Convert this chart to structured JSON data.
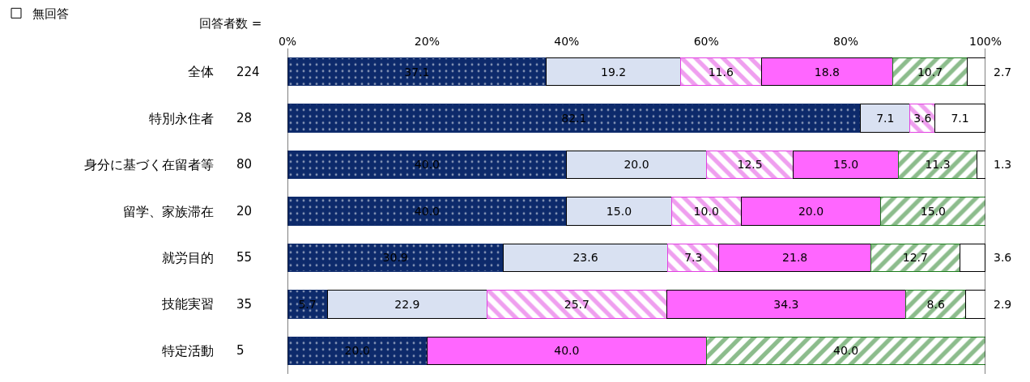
{
  "chart_data": {
    "type": "bar",
    "orientation": "horizontal",
    "stacked": true,
    "categories": [
      "全体",
      "特別永住者",
      "身分に基づく在留者等",
      "留学、家族滞在",
      "就労目的",
      "技能実習",
      "特定活動"
    ],
    "series": [
      {
        "color": "#0d2a6b",
        "values": [
          37.1,
          82.1,
          40.0,
          40.0,
          30.9,
          5.7,
          20.0
        ],
        "value_labels": [
          "37.1",
          "82.1",
          "40.0",
          "40.0",
          "30.9",
          "5.7",
          "20.0"
        ]
      },
      {
        "color": "#d9e1f2",
        "values": [
          19.2,
          7.1,
          20.0,
          15.0,
          23.6,
          22.9,
          null
        ],
        "value_labels": [
          "19.2",
          "7.1",
          "20.0",
          "15.0",
          "23.6",
          "22.9",
          null
        ]
      },
      {
        "color": "#e040e0",
        "values": [
          11.6,
          3.6,
          12.5,
          10.0,
          7.3,
          25.7,
          null
        ],
        "value_labels": [
          "11.6",
          "3.6",
          "12.5",
          "10.0",
          "7.3",
          "25.7",
          null
        ]
      },
      {
        "color": "#ff66ff",
        "values": [
          18.8,
          null,
          15.0,
          20.0,
          21.8,
          34.3,
          40.0
        ],
        "value_labels": [
          "18.8",
          null,
          "15.0",
          "20.0",
          "21.8",
          "34.3",
          "40.0"
        ]
      },
      {
        "color": "#1a7a1a",
        "values": [
          10.7,
          null,
          11.3,
          15.0,
          12.7,
          8.6,
          40.0
        ],
        "value_labels": [
          "10.7",
          null,
          "11.3",
          "15.0",
          "12.7",
          "8.6",
          "40.0"
        ]
      },
      {
        "name": "無回答",
        "color": "#ffffff",
        "values": [
          2.7,
          7.1,
          1.3,
          null,
          3.6,
          2.9,
          null
        ],
        "value_labels": [
          "2.7",
          "7.1",
          "1.3",
          null,
          "3.6",
          "2.9",
          null
        ]
      }
    ],
    "xlim": [
      0,
      100
    ],
    "xticks": [
      {
        "value": 0,
        "label": "0%"
      },
      {
        "value": 20,
        "label": "20%"
      },
      {
        "value": 40,
        "label": "40%"
      },
      {
        "value": 60,
        "label": "60%"
      },
      {
        "value": 80,
        "label": "80%"
      },
      {
        "value": 100,
        "label": "100%"
      }
    ],
    "legend": "top left",
    "annotations": [
      "回答者数 =",
      "224",
      "28",
      "80",
      "20",
      "55",
      "35",
      "5"
    ]
  }
}
